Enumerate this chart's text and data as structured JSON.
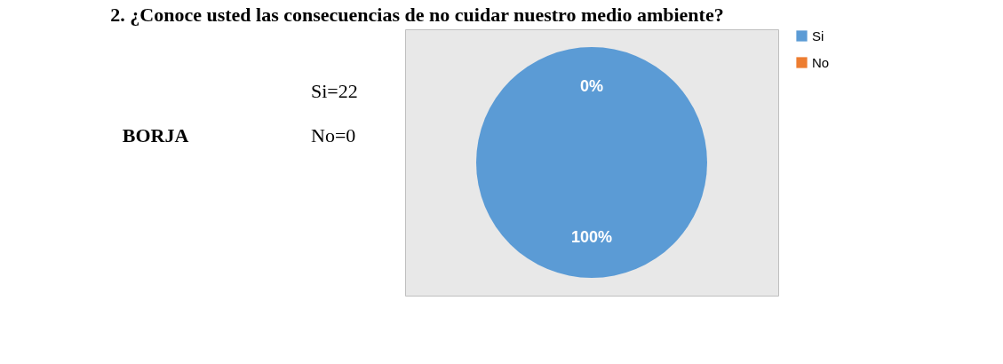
{
  "chart_data": {
    "type": "pie",
    "title": "2. ¿Conoce usted las consecuencias de no cuidar nuestro medio ambiente?",
    "annotations": [
      "BORJA",
      "Si=22",
      "No=0"
    ],
    "categories": [
      "Si",
      "No"
    ],
    "values": [
      100,
      0
    ],
    "colors": [
      "#5b9bd5",
      "#ed7d31"
    ],
    "value_labels": [
      "100%",
      "0%"
    ],
    "legend": "right"
  }
}
